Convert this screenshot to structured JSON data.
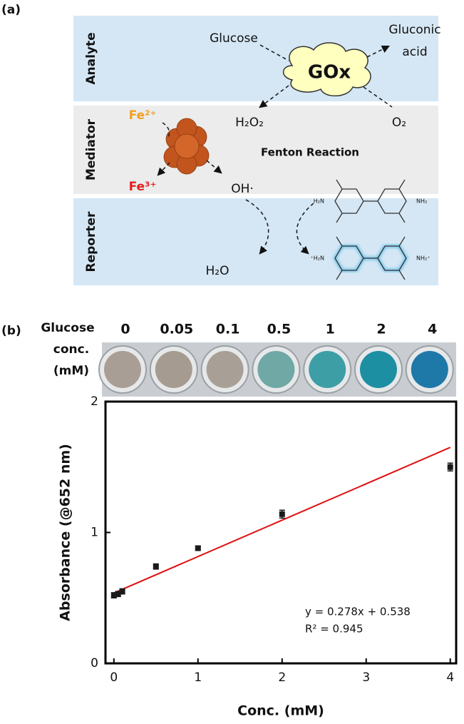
{
  "diagram": {
    "panel_a": "(a)",
    "bands": [
      "Analyte",
      "Mediator",
      "Reporter"
    ],
    "glucose": "Glucose",
    "gluconic": [
      "Gluconic",
      "acid"
    ],
    "enzyme": "GOx",
    "h2o2": "H₂O₂",
    "o2": "O₂",
    "fe2": "Fe²⁺",
    "fe3": "Fe³⁺",
    "fenton": "Fenton Reaction",
    "oh": "OH·",
    "h2o": "H₂O",
    "amine_left": "H₂N",
    "amine_right": "NH₂",
    "amine_left_ox": "⁺H₂N",
    "amine_right_ox": "NH₂⁺",
    "panel_b": "(b)",
    "conc_label": [
      "Glucose",
      "conc.",
      "(mM)"
    ],
    "wells": [
      {
        "label": "0",
        "color": "#a99e95"
      },
      {
        "label": "0.05",
        "color": "#a59b91"
      },
      {
        "label": "0.1",
        "color": "#a8a097"
      },
      {
        "label": "0.5",
        "color": "#6fa8a4"
      },
      {
        "label": "1",
        "color": "#3d9ea6"
      },
      {
        "label": "2",
        "color": "#1d8fa3"
      },
      {
        "label": "4",
        "color": "#1f79a8"
      }
    ]
  },
  "chart_data": {
    "type": "scatter",
    "x_label": "Conc. (mM)",
    "y_label": "Absorbance (@652 nm)",
    "x": [
      0,
      0.05,
      0.1,
      0.5,
      1,
      2,
      4
    ],
    "values": [
      0.52,
      0.53,
      0.55,
      0.74,
      0.88,
      1.14,
      1.5
    ],
    "errors": [
      0.02,
      0.02,
      0.02,
      0.02,
      0.015,
      0.03,
      0.03
    ],
    "color": "#1a1a1a",
    "fit": {
      "x": [
        0,
        4
      ],
      "values": [
        0.538,
        1.65
      ],
      "color": "#e01010"
    },
    "annotations": [
      "y = 0.278x + 0.538",
      "R² = 0.945"
    ],
    "xlim": [
      -0.1,
      4.07
    ],
    "ylim": [
      0,
      2
    ],
    "xticks": [
      0,
      1,
      2,
      3,
      4
    ],
    "yticks": [
      0,
      1,
      2
    ]
  }
}
